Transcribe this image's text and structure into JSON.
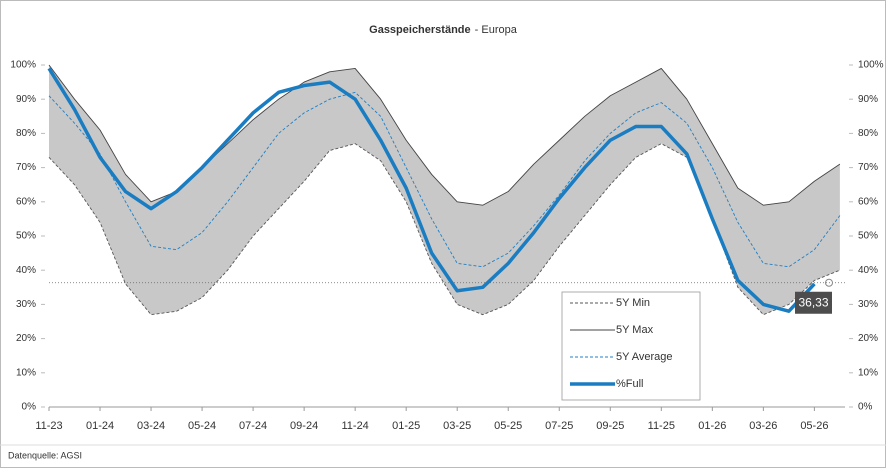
{
  "chart_data": {
    "type": "line",
    "title": "Gasspeicherstände",
    "subtitle": "- Europa",
    "source": "Datenquelle: AGSI",
    "xlim": [
      0,
      31.2
    ],
    "xticks": [
      {
        "value": 0,
        "label": "11-23"
      },
      {
        "value": 2,
        "label": "01-24"
      },
      {
        "value": 4,
        "label": "03-24"
      },
      {
        "value": 6,
        "label": "05-24"
      },
      {
        "value": 8,
        "label": "07-24"
      },
      {
        "value": 10,
        "label": "09-24"
      },
      {
        "value": 12,
        "label": "11-24"
      },
      {
        "value": 14,
        "label": "01-25"
      },
      {
        "value": 16,
        "label": "03-25"
      },
      {
        "value": 18,
        "label": "05-25"
      },
      {
        "value": 20,
        "label": "07-25"
      },
      {
        "value": 22,
        "label": "09-25"
      },
      {
        "value": 24,
        "label": "11-25"
      },
      {
        "value": 26,
        "label": "01-26"
      },
      {
        "value": 28,
        "label": "03-26"
      },
      {
        "value": 30,
        "label": "05-26"
      }
    ],
    "x": [
      0,
      1,
      2,
      3,
      4,
      5,
      6,
      7,
      8,
      9,
      10,
      11,
      12,
      13,
      14,
      15,
      16,
      17,
      18,
      19,
      20,
      21,
      22,
      23,
      24,
      25,
      26,
      27,
      28,
      29,
      30,
      31
    ],
    "ylim": [
      0,
      100
    ],
    "yticks": [
      {
        "value": 0,
        "label": "0%"
      },
      {
        "value": 10,
        "label": "10%"
      },
      {
        "value": 20,
        "label": "20%"
      },
      {
        "value": 30,
        "label": "30%"
      },
      {
        "value": 40,
        "label": "40%"
      },
      {
        "value": 50,
        "label": "50%"
      },
      {
        "value": 60,
        "label": "60%"
      },
      {
        "value": 70,
        "label": "70%"
      },
      {
        "value": 80,
        "label": "80%"
      },
      {
        "value": 90,
        "label": "90%"
      },
      {
        "value": 100,
        "label": "100%"
      }
    ],
    "y2lim": [
      0,
      100
    ],
    "y2ticks": [
      {
        "value": 0,
        "label": "0%"
      },
      {
        "value": 10,
        "label": "10%"
      },
      {
        "value": 20,
        "label": "20%"
      },
      {
        "value": 30,
        "label": "30%"
      },
      {
        "value": 40,
        "label": "40%"
      },
      {
        "value": 50,
        "label": "50%"
      },
      {
        "value": 60,
        "label": "60%"
      },
      {
        "value": 70,
        "label": "70%"
      },
      {
        "value": 80,
        "label": "80%"
      },
      {
        "value": 90,
        "label": "90%"
      },
      {
        "value": 100,
        "label": "100%"
      }
    ],
    "band_color": "#c8c8c8",
    "series": [
      {
        "name": "5Y Min",
        "color": "#555555",
        "dash": true,
        "values": [
          73,
          65,
          54,
          36,
          27,
          28,
          32,
          40,
          50,
          58,
          66,
          75,
          77,
          72,
          60,
          42,
          30,
          27,
          30,
          37,
          47,
          56,
          65,
          73,
          77,
          73,
          55,
          35,
          27,
          30,
          37,
          40
        ]
      },
      {
        "name": "5Y Max",
        "color": "#444444",
        "dash": false,
        "values": [
          100,
          90,
          81,
          68,
          60,
          63,
          70,
          77,
          84,
          90,
          95,
          98,
          99,
          90,
          78,
          68,
          60,
          59,
          63,
          71,
          78,
          85,
          91,
          95,
          99,
          90,
          77,
          64,
          59,
          60,
          66,
          71
        ]
      },
      {
        "name": "5Y Average",
        "color": "#1f7fc4",
        "dash": true,
        "values": [
          91,
          83,
          74,
          60,
          47,
          46,
          51,
          60,
          70,
          80,
          86,
          90,
          92,
          85,
          70,
          55,
          42,
          41,
          45,
          53,
          62,
          72,
          80,
          86,
          89,
          83,
          70,
          54,
          42,
          41,
          46,
          56
        ]
      },
      {
        "name": "%Full",
        "color": "#1a7dc2",
        "dash": false,
        "thick": true,
        "values": [
          99,
          87,
          73,
          63,
          58,
          63,
          70,
          78,
          86,
          92,
          94,
          95,
          90,
          78,
          64,
          45,
          34,
          35,
          42,
          51,
          61,
          70,
          78,
          82,
          82,
          74,
          55,
          37,
          30,
          28,
          36,
          null
        ]
      }
    ],
    "annotation": {
      "value": 36.33,
      "label": "36,33"
    }
  }
}
